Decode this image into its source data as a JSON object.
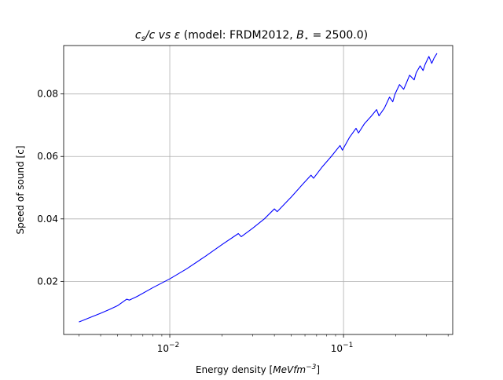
{
  "chart_data": {
    "type": "line",
    "title": "c_s/c vs ε (model: FRDM2012, B⋆ = 2500.0)",
    "title_parts": {
      "cs": "c",
      "cs_sub": "s",
      "slash_c": "/c vs ",
      "epsilon": "ε",
      "model": " (model: FRDM2012, ",
      "B": "B",
      "B_sub": "⋆",
      "value": " = 2500.0)"
    },
    "xlabel": "Energy density [MeVfm^-3]",
    "xlabel_parts": {
      "prefix": "Energy density [",
      "unit": "MeVfm",
      "exp": "−3",
      "suffix": "]"
    },
    "ylabel": "Speed of sound [c]",
    "xscale": "log",
    "xlim": [
      0.00245,
      0.425
    ],
    "ylim": [
      0.003,
      0.0955
    ],
    "grid": true,
    "x_ticks": [
      {
        "value": 0.01,
        "base": "10",
        "exp": "−2"
      },
      {
        "value": 0.1,
        "base": "10",
        "exp": "−1"
      }
    ],
    "y_ticks": [
      {
        "value": 0.02,
        "label": "0.02"
      },
      {
        "value": 0.04,
        "label": "0.04"
      },
      {
        "value": 0.06,
        "label": "0.06"
      },
      {
        "value": 0.08,
        "label": "0.08"
      }
    ],
    "line_color": "#0000ff",
    "series": [
      {
        "x": [
          0.003,
          0.0035,
          0.004,
          0.0045,
          0.005,
          0.00565,
          0.00585,
          0.0065,
          0.008,
          0.01,
          0.0125,
          0.016,
          0.02,
          0.0248,
          0.0258,
          0.03,
          0.035,
          0.04,
          0.0415,
          0.05,
          0.058,
          0.065,
          0.0672,
          0.075,
          0.085,
          0.0955,
          0.0985,
          0.108,
          0.118,
          0.122,
          0.132,
          0.145,
          0.155,
          0.16,
          0.172,
          0.184,
          0.192,
          0.198,
          0.21,
          0.222,
          0.23,
          0.24,
          0.255,
          0.262,
          0.276,
          0.287,
          0.295,
          0.31,
          0.322,
          0.332,
          0.345
        ],
        "y": [
          0.007,
          0.0085,
          0.0098,
          0.011,
          0.0122,
          0.0143,
          0.014,
          0.0152,
          0.018,
          0.0208,
          0.024,
          0.028,
          0.0318,
          0.0353,
          0.0343,
          0.037,
          0.04,
          0.0432,
          0.0423,
          0.047,
          0.051,
          0.054,
          0.053,
          0.0565,
          0.06,
          0.0635,
          0.062,
          0.066,
          0.069,
          0.0675,
          0.0705,
          0.073,
          0.075,
          0.073,
          0.0755,
          0.079,
          0.0775,
          0.08,
          0.083,
          0.0815,
          0.0835,
          0.086,
          0.0845,
          0.0868,
          0.089,
          0.0875,
          0.0895,
          0.092,
          0.0898,
          0.0915,
          0.093
        ]
      }
    ]
  }
}
